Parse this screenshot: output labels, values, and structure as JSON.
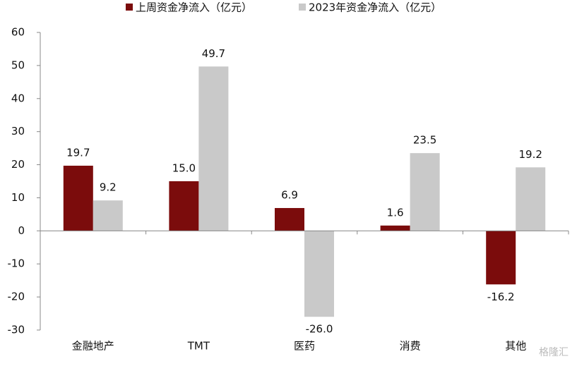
{
  "chart_data": {
    "type": "bar",
    "categories": [
      "金融地产",
      "TMT",
      "医药",
      "消费",
      "其他"
    ],
    "series": [
      {
        "name": "上周资金净流入（亿元）",
        "color": "#7b0c0c",
        "values": [
          19.7,
          15.0,
          6.9,
          1.6,
          -16.2
        ],
        "value_labels": [
          "19.7",
          "15.0",
          "6.9",
          "1.6",
          "-16.2"
        ]
      },
      {
        "name": "2023年资金净流入（亿元）",
        "color": "#c9c9c9",
        "values": [
          9.2,
          49.7,
          -26.0,
          23.5,
          19.2
        ],
        "value_labels": [
          "9.2",
          "49.7",
          "-26.0",
          "23.5",
          "19.2"
        ]
      }
    ],
    "ylim": [
      -30,
      60
    ],
    "yticks": [
      -30,
      -20,
      -10,
      0,
      10,
      20,
      30,
      40,
      50,
      60
    ],
    "legend": "top",
    "watermark": "格隆汇"
  }
}
